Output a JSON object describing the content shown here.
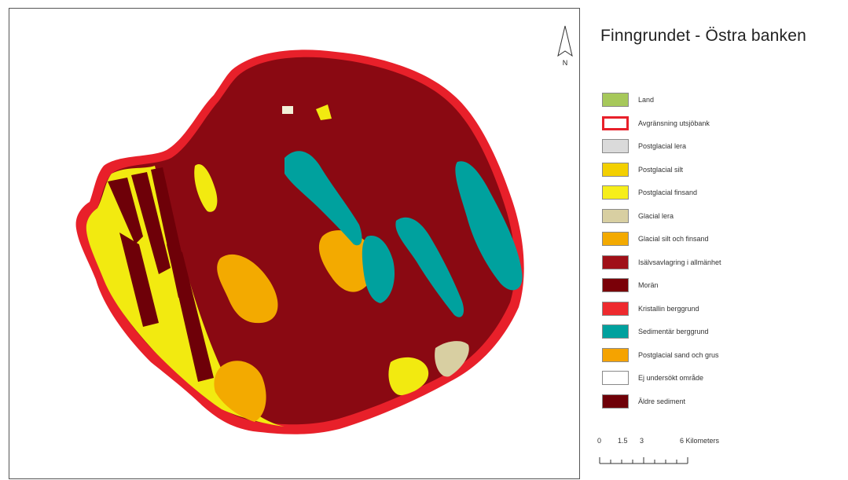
{
  "map": {
    "title": "Finngrundet - Östra banken",
    "north_label": "N",
    "legend": [
      {
        "label": "Land",
        "color": "#a6c85a"
      },
      {
        "label": "Avgränsning utsjöbank",
        "color": "#ffffff",
        "outline": "#e8202a"
      },
      {
        "label": "Postglacial lera",
        "color": "#dadada"
      },
      {
        "label": "Postglacial silt",
        "color": "#f3d000"
      },
      {
        "label": "Postglacial finsand",
        "color": "#f6ee1a"
      },
      {
        "label": "Glacial lera",
        "color": "#d8cfa2"
      },
      {
        "label": "Glacial silt och finsand",
        "color": "#f3aa00"
      },
      {
        "label": "Isälvsavlagring i allmänhet",
        "color": "#a01018"
      },
      {
        "label": "Morän",
        "color": "#7a0008"
      },
      {
        "label": "Kristallin berggrund",
        "color": "#ee2a2e"
      },
      {
        "label": "Sedimentär berggrund",
        "color": "#00a19e"
      },
      {
        "label": "Postglacial sand och grus",
        "color": "#f5a300"
      },
      {
        "label": "Ej undersökt område",
        "color": "#ffffff"
      },
      {
        "label": "Äldre sediment",
        "color": "#6f0008"
      }
    ],
    "scalebar": {
      "labels": [
        "0",
        "1.5",
        "3",
        "6 Kilometers"
      ],
      "values": [
        0,
        1.5,
        3,
        6
      ],
      "unit": "Kilometers"
    }
  }
}
